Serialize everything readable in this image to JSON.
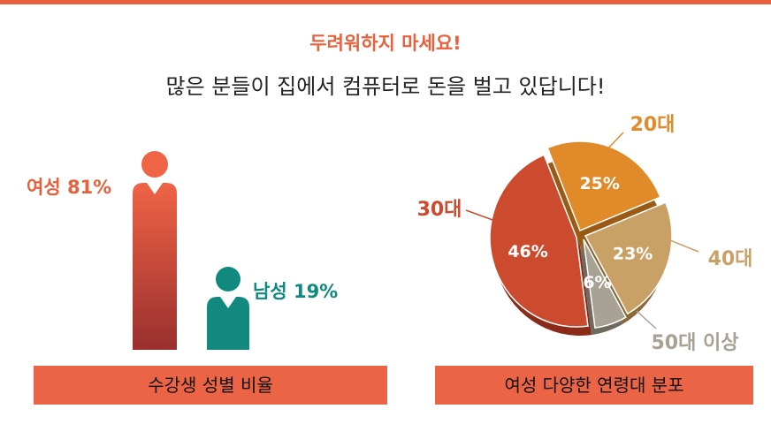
{
  "headline": {
    "line1": "두려워하지 마세요!",
    "line2": "많은 분들이 집에서 컴퓨터로 돈을 벌고 있답니다!"
  },
  "colors": {
    "accent": "#e8603c",
    "female_top": "#ef6446",
    "female_bottom": "#9a2f2e",
    "male": "#11897e",
    "male_label": "#0e8a7f",
    "age_20": "#e08a2a",
    "age_30": "#cc4a2e",
    "age_40": "#c9a166",
    "age_50": "#a8a294"
  },
  "chart_data": [
    {
      "type": "bar",
      "title": "수강생 성별 비율",
      "categories": [
        "여성",
        "남성"
      ],
      "values": [
        81,
        19
      ],
      "labels": [
        "여성 81%",
        "남성 19%"
      ],
      "unit": "%"
    },
    {
      "type": "pie",
      "title": "여성 다양한 연령대 분포",
      "labels": [
        "20대",
        "40대",
        "50대 이상",
        "30대"
      ],
      "values": [
        25,
        23,
        6,
        46
      ],
      "value_labels": [
        "25%",
        "23%",
        "6%",
        "46%"
      ],
      "unit": "%"
    }
  ]
}
